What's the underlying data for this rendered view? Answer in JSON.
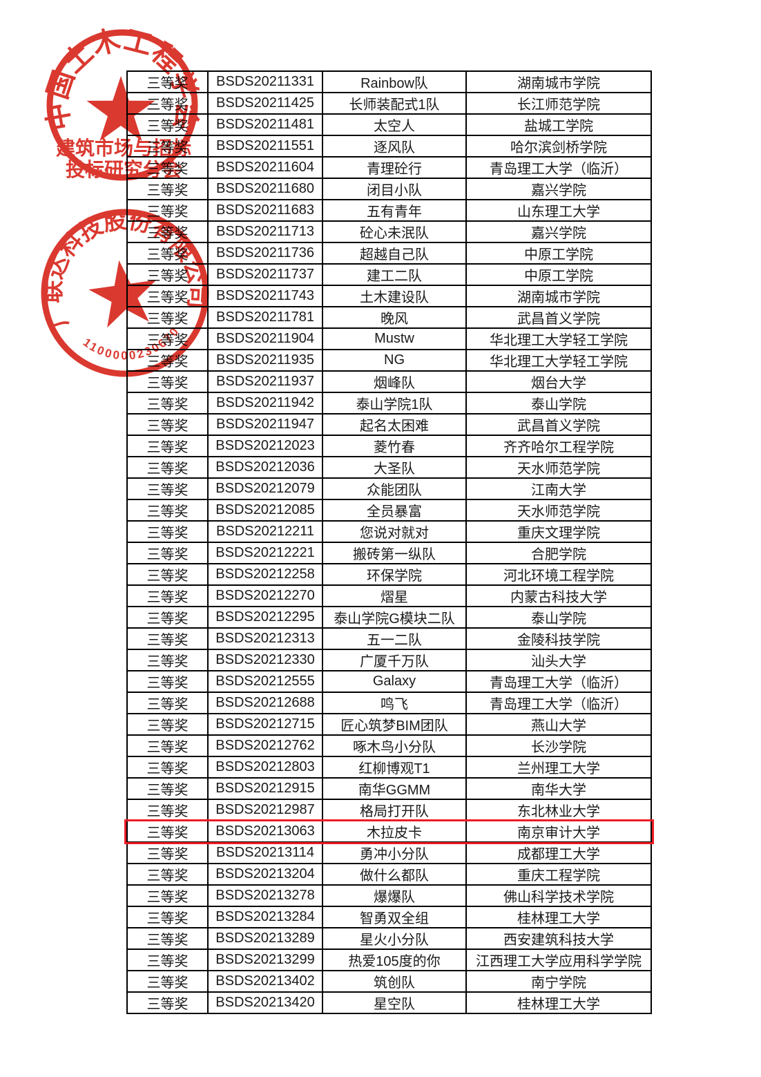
{
  "page": {
    "background": "#ffffff",
    "description": "三等奖获奖名单表格页（续页，无表头）"
  },
  "table": {
    "column_keys": [
      "award",
      "registration_id",
      "team",
      "school"
    ],
    "rows": [
      [
        "三等奖",
        "BSDS20211331",
        "Rainbow队",
        "湖南城市学院"
      ],
      [
        "三等奖",
        "BSDS20211425",
        "长师装配式1队",
        "长江师范学院"
      ],
      [
        "三等奖",
        "BSDS20211481",
        "太空人",
        "盐城工学院"
      ],
      [
        "三等奖",
        "BSDS20211551",
        "逐风队",
        "哈尔滨剑桥学院"
      ],
      [
        "三等奖",
        "BSDS20211604",
        "青理砼行",
        "青岛理工大学（临沂）"
      ],
      [
        "三等奖",
        "BSDS20211680",
        "闭目小队",
        "嘉兴学院"
      ],
      [
        "三等奖",
        "BSDS20211683",
        "五有青年",
        "山东理工大学"
      ],
      [
        "三等奖",
        "BSDS20211713",
        "砼心未泯队",
        "嘉兴学院"
      ],
      [
        "三等奖",
        "BSDS20211736",
        "超越自己队",
        "中原工学院"
      ],
      [
        "三等奖",
        "BSDS20211737",
        "建工二队",
        "中原工学院"
      ],
      [
        "三等奖",
        "BSDS20211743",
        "土木建设队",
        "湖南城市学院"
      ],
      [
        "三等奖",
        "BSDS20211781",
        "晚风",
        "武昌首义学院"
      ],
      [
        "三等奖",
        "BSDS20211904",
        "Mustw",
        "华北理工大学轻工学院"
      ],
      [
        "三等奖",
        "BSDS20211935",
        "NG",
        "华北理工大学轻工学院"
      ],
      [
        "三等奖",
        "BSDS20211937",
        "烟峰队",
        "烟台大学"
      ],
      [
        "三等奖",
        "BSDS20211942",
        "泰山学院1队",
        "泰山学院"
      ],
      [
        "三等奖",
        "BSDS20211947",
        "起名太困难",
        "武昌首义学院"
      ],
      [
        "三等奖",
        "BSDS20212023",
        "菱竹春",
        "齐齐哈尔工程学院"
      ],
      [
        "三等奖",
        "BSDS20212036",
        "大圣队",
        "天水师范学院"
      ],
      [
        "三等奖",
        "BSDS20212079",
        "众能团队",
        "江南大学"
      ],
      [
        "三等奖",
        "BSDS20212085",
        "全员暴富",
        "天水师范学院"
      ],
      [
        "三等奖",
        "BSDS20212211",
        "您说对就对",
        "重庆文理学院"
      ],
      [
        "三等奖",
        "BSDS20212221",
        "搬砖第一纵队",
        "合肥学院"
      ],
      [
        "三等奖",
        "BSDS20212258",
        "环保学院",
        "河北环境工程学院"
      ],
      [
        "三等奖",
        "BSDS20212270",
        "熠星",
        "内蒙古科技大学"
      ],
      [
        "三等奖",
        "BSDS20212295",
        "泰山学院G模块二队",
        "泰山学院"
      ],
      [
        "三等奖",
        "BSDS20212313",
        "五一二队",
        "金陵科技学院"
      ],
      [
        "三等奖",
        "BSDS20212330",
        "广厦千万队",
        "汕头大学"
      ],
      [
        "三等奖",
        "BSDS20212555",
        "Galaxy",
        "青岛理工大学（临沂）"
      ],
      [
        "三等奖",
        "BSDS20212688",
        "鸣飞",
        "青岛理工大学（临沂）"
      ],
      [
        "三等奖",
        "BSDS20212715",
        "匠心筑梦BIM团队",
        "燕山大学"
      ],
      [
        "三等奖",
        "BSDS20212762",
        "啄木鸟小分队",
        "长沙学院"
      ],
      [
        "三等奖",
        "BSDS20212803",
        "红柳博观T1",
        "兰州理工大学"
      ],
      [
        "三等奖",
        "BSDS20212915",
        "南华GGMM",
        "南华大学"
      ],
      [
        "三等奖",
        "BSDS20212987",
        "格局打开队",
        "东北林业大学"
      ],
      [
        "三等奖",
        "BSDS20213063",
        "木拉皮卡",
        "南京审计大学"
      ],
      [
        "三等奖",
        "BSDS20213114",
        "勇冲小分队",
        "成都理工大学"
      ],
      [
        "三等奖",
        "BSDS20213204",
        "做什么都队",
        "重庆工程学院"
      ],
      [
        "三等奖",
        "BSDS20213278",
        "爆爆队",
        "佛山科学技术学院"
      ],
      [
        "三等奖",
        "BSDS20213284",
        "智勇双全组",
        "桂林理工大学"
      ],
      [
        "三等奖",
        "BSDS20213289",
        "星火小分队",
        "西安建筑科技大学"
      ],
      [
        "三等奖",
        "BSDS20213299",
        "热爱105度的你",
        "江西理工大学应用科学学院"
      ],
      [
        "三等奖",
        "BSDS20213402",
        "筑创队",
        "南宁学院"
      ],
      [
        "三等奖",
        "BSDS20213420",
        "星空队",
        "桂林理工大学"
      ]
    ],
    "border_color": "#000000",
    "text_color": "#1a1a1a"
  },
  "highlight": {
    "row_index": 35,
    "row_values": [
      "三等奖",
      "BSDS20213063",
      "木拉皮卡",
      "南京审计大学"
    ],
    "border_color": "#ec1c24"
  },
  "stamps": [
    {
      "arc_text": "中国土木工程学会",
      "line1": "建筑市场与招标",
      "line2": "投标研究分会",
      "color": "#d7281e"
    },
    {
      "arc_text": "广联达科技股份有限公司",
      "serial": "1100000230670",
      "color": "#d7281e"
    }
  ]
}
